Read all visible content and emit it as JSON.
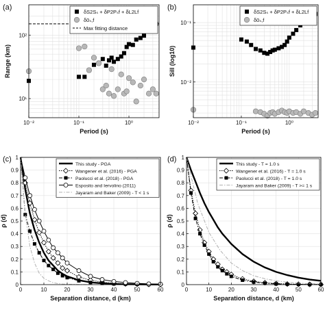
{
  "figure": {
    "panel_labels": [
      "(a)",
      "(b)",
      "(c)",
      "(d)"
    ]
  },
  "chart_data": [
    {
      "id": "a",
      "type": "scatter",
      "xscale": "log",
      "yscale": "log",
      "xlim": [
        0.01,
        4
      ],
      "ylim": [
        5,
        300
      ],
      "xticks": [
        {
          "v": 0.01,
          "label": "10⁻²"
        },
        {
          "v": 0.1,
          "label": "10⁻¹"
        },
        {
          "v": 1,
          "label": "10⁰"
        }
      ],
      "yticks": [
        {
          "v": 10,
          "label": "10¹"
        },
        {
          "v": 100,
          "label": "10²"
        }
      ],
      "xlabel": "Period (s)",
      "ylabel": "Range (km)",
      "grid": true,
      "legend_position": "top-right",
      "reference_line": {
        "name": "Max fitting distance",
        "value": 150
      },
      "series": [
        {
          "name": "δS2Sₛ + δP2Pₛf + δL2Lf",
          "marker": "square",
          "color": "#000000",
          "x": [
            0.01,
            0.1,
            0.13,
            0.16,
            0.2,
            0.25,
            0.3,
            0.35,
            0.4,
            0.45,
            0.5,
            0.6,
            0.7,
            0.8,
            0.9,
            1.0,
            1.2,
            1.4,
            1.7,
            2.0,
            2.5,
            3.0,
            3.5
          ],
          "y": [
            19,
            22,
            22,
            28,
            34,
            36,
            42,
            33,
            40,
            44,
            38,
            42,
            46,
            52,
            65,
            72,
            70,
            85,
            90,
            98,
            130,
            145,
            150
          ]
        },
        {
          "name": "δ0ₛ,f",
          "marker": "circle",
          "color": "#b8b8b8",
          "x": [
            0.01,
            0.1,
            0.13,
            0.16,
            0.2,
            0.25,
            0.3,
            0.35,
            0.4,
            0.45,
            0.5,
            0.6,
            0.7,
            0.8,
            0.9,
            1.0,
            1.2,
            1.4,
            1.7,
            2.0,
            2.5,
            3.0,
            3.5
          ],
          "y": [
            27,
            62,
            66,
            28,
            44,
            36,
            14,
            16,
            12,
            29,
            11,
            14,
            24,
            12,
            13,
            21,
            18,
            9,
            16,
            20,
            12,
            14,
            12
          ]
        }
      ]
    },
    {
      "id": "b",
      "type": "scatter",
      "xscale": "log",
      "yscale": "log",
      "xlim": [
        0.01,
        4
      ],
      "ylim": [
        0.0025,
        0.2
      ],
      "xticks": [
        {
          "v": 0.01,
          "label": "10⁻²"
        },
        {
          "v": 0.1,
          "label": "10⁻¹"
        },
        {
          "v": 1,
          "label": "10⁰"
        }
      ],
      "yticks": [
        {
          "v": 0.01,
          "label": "10⁻²"
        },
        {
          "v": 0.1,
          "label": "10⁻¹"
        }
      ],
      "xlabel": "Period (s)",
      "ylabel": "Sill (log10)",
      "grid": true,
      "legend_position": "top-right",
      "series": [
        {
          "name": "δS2Sₛ + δP2Pₛf + δL2Lf",
          "marker": "square",
          "color": "#000000",
          "x": [
            0.01,
            0.1,
            0.13,
            0.16,
            0.2,
            0.25,
            0.3,
            0.35,
            0.4,
            0.45,
            0.5,
            0.6,
            0.7,
            0.8,
            0.9,
            1.0,
            1.2,
            1.4,
            1.7,
            2.0,
            2.5,
            3.0,
            3.5
          ],
          "y": [
            0.038,
            0.052,
            0.048,
            0.042,
            0.036,
            0.034,
            0.031,
            0.03,
            0.032,
            0.034,
            0.035,
            0.037,
            0.039,
            0.042,
            0.048,
            0.056,
            0.065,
            0.075,
            0.09,
            0.1,
            0.12,
            0.13,
            0.14
          ]
        },
        {
          "name": "δ0ₛ,f",
          "marker": "circle",
          "color": "#b8b8b8",
          "x": [
            0.01,
            0.2,
            0.25,
            0.3,
            0.35,
            0.4,
            0.45,
            0.5,
            0.6,
            0.7,
            0.8,
            0.9,
            1.0,
            1.2,
            1.4,
            1.7,
            2.0,
            2.5,
            3.0,
            3.5
          ],
          "y": [
            0.0034,
            0.0032,
            0.0031,
            0.0029,
            0.0027,
            0.003,
            0.0031,
            0.0029,
            0.0031,
            0.0033,
            0.0031,
            0.003,
            0.0032,
            0.003,
            0.0031,
            0.0029,
            0.0032,
            0.003,
            0.0028,
            0.003
          ]
        }
      ]
    },
    {
      "id": "c",
      "type": "line",
      "xlim": [
        0,
        60
      ],
      "ylim": [
        0,
        1
      ],
      "xticks": [
        0,
        10,
        20,
        30,
        40,
        50,
        60
      ],
      "yticks": [
        0,
        0.1,
        0.2,
        0.3,
        0.4,
        0.5,
        0.6,
        0.7,
        0.8,
        0.9,
        1
      ],
      "xlabel": "Separation distance, d (km)",
      "ylabel": "ρ (d)",
      "grid": true,
      "legend_position": "top-right",
      "series": [
        {
          "name": "This study - PGA",
          "style": "solid-thick",
          "x": [
            0,
            2,
            4,
            6,
            8,
            10,
            12,
            14,
            16,
            18,
            20,
            25,
            30,
            35,
            40,
            45,
            50,
            55,
            60
          ],
          "y": [
            1,
            0.75,
            0.56,
            0.43,
            0.33,
            0.25,
            0.19,
            0.15,
            0.11,
            0.085,
            0.065,
            0.035,
            0.018,
            0.01,
            0.005,
            0.003,
            0.002,
            0.001,
            0.001
          ]
        },
        {
          "name": "Wangener et al. (2016) - PGA",
          "style": "dotted-diamond",
          "x": [
            0,
            2,
            4,
            6,
            8,
            10,
            12,
            14,
            16,
            18,
            20,
            25,
            30,
            35,
            40,
            45,
            50,
            55,
            60
          ],
          "y": [
            1,
            0.8,
            0.64,
            0.51,
            0.41,
            0.33,
            0.26,
            0.21,
            0.17,
            0.13,
            0.11,
            0.06,
            0.035,
            0.02,
            0.011,
            0.006,
            0.004,
            0.002,
            0.001
          ]
        },
        {
          "name": "Paolucci et al. (2018) - PGA",
          "style": "dashdot-square",
          "x": [
            0,
            2,
            4,
            6,
            8,
            10,
            12,
            14,
            16,
            18,
            20,
            25,
            30,
            35,
            40,
            45,
            50,
            55,
            60
          ],
          "y": [
            1,
            0.55,
            0.42,
            0.32,
            0.25,
            0.19,
            0.15,
            0.12,
            0.09,
            0.07,
            0.055,
            0.03,
            0.017,
            0.01,
            0.006,
            0.004,
            0.002,
            0.001,
            0.001
          ]
        },
        {
          "name": "Esposito and Iervolino (2011)",
          "style": "solid-circle",
          "x": [
            0,
            2,
            4,
            6,
            8,
            10,
            12,
            14,
            16,
            18,
            20,
            25,
            30,
            35,
            40,
            45,
            50,
            55,
            60
          ],
          "y": [
            1,
            0.84,
            0.7,
            0.59,
            0.5,
            0.42,
            0.35,
            0.29,
            0.25,
            0.21,
            0.17,
            0.11,
            0.065,
            0.04,
            0.025,
            0.016,
            0.01,
            0.006,
            0.004
          ]
        },
        {
          "name": "Jayaram and Baker (2009) - T < 1 s",
          "style": "dashdot-gray",
          "x": [
            0,
            2,
            4,
            6,
            8,
            10,
            12,
            14,
            16,
            18,
            20,
            25,
            30
          ],
          "y": [
            1,
            0.55,
            0.3,
            0.17,
            0.09,
            0.05,
            0.03,
            0.015,
            0.008,
            0.005,
            0.003,
            0.001,
            0.0
          ]
        }
      ]
    },
    {
      "id": "d",
      "type": "line",
      "xlim": [
        0,
        60
      ],
      "ylim": [
        0,
        1
      ],
      "xticks": [
        0,
        10,
        20,
        30,
        40,
        50,
        60
      ],
      "yticks": [
        0,
        0.1,
        0.2,
        0.3,
        0.4,
        0.5,
        0.6,
        0.7,
        0.8,
        0.9,
        1
      ],
      "xlabel": "Separation distance, d (km)",
      "ylabel": "ρ (d)",
      "grid": true,
      "legend_position": "top-right",
      "series": [
        {
          "name": "This study - T = 1.0 s",
          "style": "solid-thick",
          "x": [
            0,
            2,
            4,
            6,
            8,
            10,
            12,
            14,
            16,
            18,
            20,
            25,
            30,
            35,
            40,
            45,
            50,
            55,
            60
          ],
          "y": [
            1,
            0.9,
            0.81,
            0.72,
            0.64,
            0.57,
            0.51,
            0.45,
            0.4,
            0.36,
            0.32,
            0.24,
            0.18,
            0.135,
            0.1,
            0.075,
            0.055,
            0.04,
            0.03
          ]
        },
        {
          "name": "Wangener et al. (2016) - T = 1.0 s",
          "style": "dotted-diamond",
          "x": [
            0,
            2,
            4,
            6,
            8,
            10,
            12,
            14,
            16,
            18,
            20,
            25,
            30,
            35,
            40,
            45,
            50,
            55,
            60
          ],
          "y": [
            1,
            0.74,
            0.56,
            0.43,
            0.33,
            0.26,
            0.2,
            0.16,
            0.12,
            0.1,
            0.08,
            0.045,
            0.026,
            0.015,
            0.009,
            0.005,
            0.003,
            0.002,
            0.001
          ]
        },
        {
          "name": "Paolucci et al. (2018) - T = 1.0 s",
          "style": "dashdot-square",
          "x": [
            0,
            2,
            4,
            6,
            8,
            10,
            12,
            14,
            16,
            18,
            20,
            25,
            30,
            35,
            40,
            45,
            50,
            55,
            60
          ],
          "y": [
            1,
            0.72,
            0.52,
            0.4,
            0.31,
            0.24,
            0.18,
            0.14,
            0.11,
            0.085,
            0.065,
            0.035,
            0.02,
            0.011,
            0.006,
            0.004,
            0.002,
            0.001,
            0.001
          ]
        },
        {
          "name": "Jayaram and Baker (2009) - T >= 1 s",
          "style": "dashdot-gray",
          "x": [
            0,
            5,
            10,
            15,
            20,
            25,
            30,
            35,
            40,
            45,
            50,
            55,
            60
          ],
          "y": [
            1,
            0.64,
            0.41,
            0.27,
            0.17,
            0.11,
            0.07,
            0.046,
            0.03,
            0.019,
            0.012,
            0.008,
            0.005
          ]
        }
      ]
    }
  ]
}
